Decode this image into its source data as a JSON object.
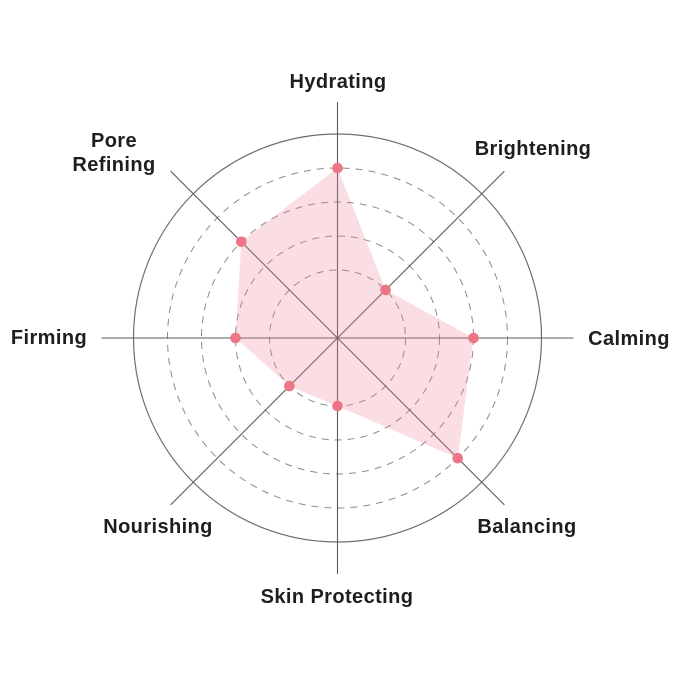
{
  "chart_data": {
    "type": "radar",
    "title": "",
    "categories_order": "clockwise from top",
    "categories": [
      "Hydrating",
      "Brightening",
      "Calming",
      "Balancing",
      "Skin Protecting",
      "Nourishing",
      "Firming",
      "Pore Refining"
    ],
    "values": [
      5,
      2,
      4,
      5,
      2,
      2,
      3,
      4
    ],
    "scale_max": 6,
    "grid_rings_dashed": [
      2,
      3,
      4,
      5
    ],
    "grid_ring_solid": 6,
    "axes_count": 8,
    "legend": "none",
    "colors": {
      "fill": "#F0809B",
      "fill_opacity": 0.27,
      "dot": "#EE7585",
      "axis_line": "#595959",
      "ring_dashed": "#8A8A8A",
      "ring_solid": "#6E6E6E",
      "label_text": "#1E1E1E",
      "background": "#FFFFFF"
    }
  }
}
